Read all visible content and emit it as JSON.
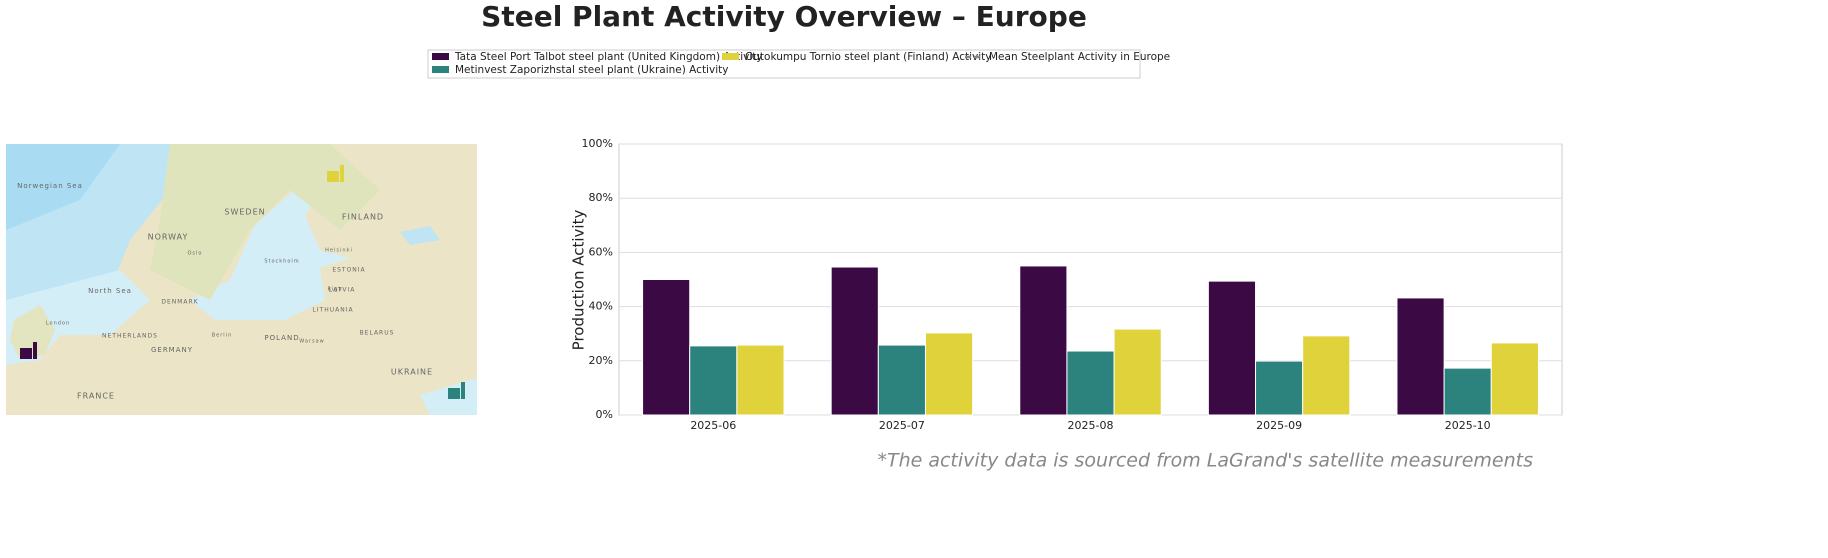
{
  "chart_data": {
    "type": "bar",
    "title": "Steel Plant Activity Overview – Europe",
    "y_label": "Production Activity",
    "footnote": "*The activity data is sourced from LaGrand's satellite measurements",
    "categories": [
      "2025-06",
      "2025-07",
      "2025-08",
      "2025-09",
      "2025-10"
    ],
    "series": [
      {
        "name": "Tata Steel Port Talbot steel plant (United Kingdom) Activity",
        "color": "#3b0a45",
        "values": [
          50,
          54.6,
          55,
          49.4,
          43.2
        ]
      },
      {
        "name": "Metinvest Zaporizhstal steel plant (Ukraine) Activity",
        "color": "#2c837d",
        "values": [
          25.5,
          25.8,
          23.6,
          19.9,
          17.3
        ]
      },
      {
        "name": "Outokumpu Tornio steel plant (Finland) Activity",
        "color": "#e0d23b",
        "values": [
          25.8,
          30.3,
          31.7,
          29.2,
          26.6
        ]
      }
    ],
    "mean_legend": {
      "name": "Mean Steelplant Activity in Europe",
      "color": "#888888"
    },
    "ylim": [
      0,
      100
    ],
    "yticks": [
      {
        "value": 0,
        "label": "0%"
      },
      {
        "value": 20,
        "label": "20%"
      },
      {
        "value": 40,
        "label": "40%"
      },
      {
        "value": 60,
        "label": "60%"
      },
      {
        "value": 80,
        "label": "80%"
      },
      {
        "value": 100,
        "label": "100%"
      }
    ],
    "grid": true
  },
  "map": {
    "labels": [
      "Norwegian Sea",
      "SWEDEN",
      "FINLAND",
      "NORWAY",
      "North Sea",
      "ESTONIA",
      "LATVIA",
      "LITHUANIA",
      "DENMARK",
      "BELARUS",
      "POLAND",
      "GERMANY",
      "NETHERLANDS",
      "UKRAINE",
      "FRANCE",
      "Stockholm",
      "Helsinki",
      "Oslo",
      "Riga",
      "Warsaw",
      "London",
      "Berlin"
    ]
  }
}
